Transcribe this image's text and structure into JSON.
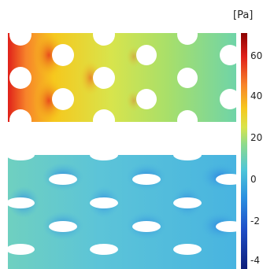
{
  "colorbar": {
    "unit": "[Pa]",
    "ticks": [
      "60",
      "40",
      "20",
      "0",
      "-2",
      "-4"
    ],
    "colors": [
      "#8b0000",
      "#e0201a",
      "#f7842a",
      "#f6c81d",
      "#d8e44c",
      "#8fdb8b",
      "#4ec6d8",
      "#2a8fe0",
      "#1f4fc8",
      "#0d1e7a"
    ]
  },
  "panels": {
    "top": {
      "hole_shape": "circle"
    },
    "bottom": {
      "hole_shape": "ellipse"
    }
  }
}
